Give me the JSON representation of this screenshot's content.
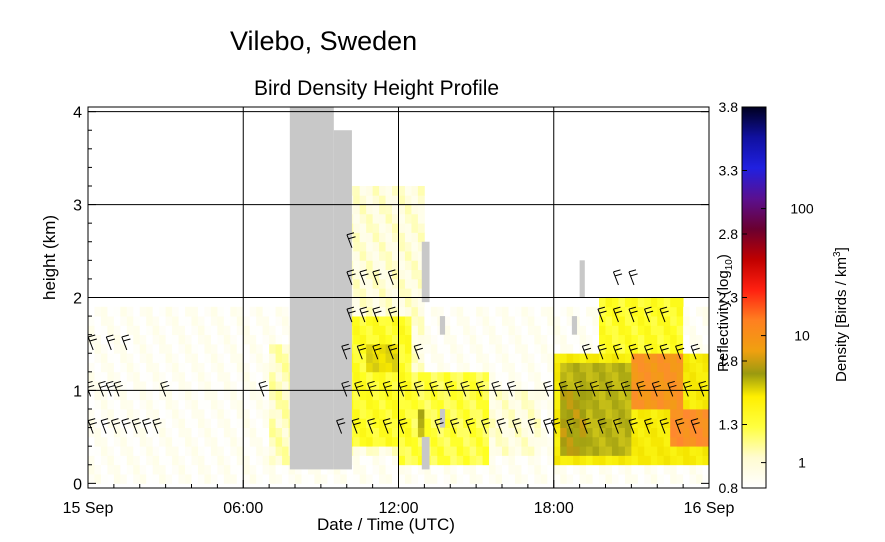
{
  "site_title": "Vilebo, Sweden",
  "chart_data": {
    "type": "heatmap",
    "title": "Bird Density Height Profile",
    "xlabel": "Date / Time (UTC)",
    "ylabel": "height (km)",
    "x_ticks": [
      {
        "hour": 0,
        "label": "15 Sep"
      },
      {
        "hour": 6,
        "label": "06:00"
      },
      {
        "hour": 12,
        "label": "12:00"
      },
      {
        "hour": 18,
        "label": "18:00"
      },
      {
        "hour": 24,
        "label": "16 Sep"
      }
    ],
    "y_ticks": [
      0,
      1,
      2,
      3,
      4
    ],
    "xlim_hours": [
      0,
      24
    ],
    "ylim_km": [
      -0.05,
      4.05
    ],
    "grid": true,
    "colorbar": {
      "left_label": "Reflectivity (log10)",
      "right_label": "Density [Birds / km3]",
      "reflectivity_ticks": [
        "0.8",
        "1.3",
        "1.8",
        "2.3",
        "2.8",
        "3.3",
        "3.8"
      ],
      "reflectivity_range": [
        0.8,
        3.8
      ],
      "density_ticks": [
        {
          "value": 1,
          "label": "1"
        },
        {
          "value": 10,
          "label": "10"
        },
        {
          "value": 100,
          "label": "100"
        }
      ]
    },
    "no_data_color": "#c8c8c8",
    "no_data_regions": [
      {
        "x0": 7.8,
        "x1": 9.5,
        "y0": 0.15,
        "y1": 4.05
      },
      {
        "x0": 9.5,
        "x1": 10.2,
        "y0": 0.15,
        "y1": 3.8
      },
      {
        "x0": 12.9,
        "x1": 13.2,
        "y0": 0.15,
        "y1": 0.5
      },
      {
        "x0": 12.9,
        "x1": 13.2,
        "y0": 1.95,
        "y1": 2.6
      },
      {
        "x0": 13.6,
        "x1": 13.8,
        "y0": 0.6,
        "y1": 0.8
      },
      {
        "x0": 13.6,
        "x1": 13.8,
        "y0": 1.6,
        "y1": 1.8
      },
      {
        "x0": 19.0,
        "x1": 19.2,
        "y0": 2.0,
        "y1": 2.4
      },
      {
        "x0": 18.7,
        "x1": 18.9,
        "y0": 1.6,
        "y1": 1.8
      }
    ],
    "reflectivity_blobs": [
      {
        "t0": 0.0,
        "t1": 24.0,
        "h0": 0.0,
        "h1": 1.9,
        "value": 0.85
      },
      {
        "t0": 7.4,
        "t1": 7.6,
        "h0": 3.6,
        "h1": 3.8,
        "value": 1.2
      },
      {
        "t0": 7.0,
        "t1": 8.0,
        "h0": 0.2,
        "h1": 1.5,
        "value": 1.0
      },
      {
        "t0": 9.8,
        "t1": 13.0,
        "h0": 0.3,
        "h1": 3.2,
        "value": 0.95
      },
      {
        "t0": 9.9,
        "t1": 12.5,
        "h0": 0.4,
        "h1": 1.8,
        "value": 1.2
      },
      {
        "t0": 10.8,
        "t1": 12.0,
        "h0": 1.2,
        "h1": 1.5,
        "value": 1.45
      },
      {
        "t0": 12.0,
        "t1": 15.5,
        "h0": 0.2,
        "h1": 1.2,
        "value": 1.15
      },
      {
        "t0": 12.8,
        "t1": 13.0,
        "h0": 0.5,
        "h1": 0.8,
        "value": 1.6
      },
      {
        "t0": 15.0,
        "t1": 17.5,
        "h0": 0.3,
        "h1": 1.0,
        "value": 0.95
      },
      {
        "t0": 18.0,
        "t1": 24.0,
        "h0": 0.2,
        "h1": 1.4,
        "value": 1.35
      },
      {
        "t0": 18.3,
        "t1": 21.0,
        "h0": 0.3,
        "h1": 1.3,
        "value": 1.6
      },
      {
        "t0": 19.8,
        "t1": 23.0,
        "h0": 1.3,
        "h1": 2.0,
        "value": 1.2
      },
      {
        "t0": 21.0,
        "t1": 23.0,
        "h0": 0.8,
        "h1": 1.4,
        "value": 1.9
      },
      {
        "t0": 22.5,
        "t1": 24.0,
        "h0": 0.4,
        "h1": 0.8,
        "value": 1.95
      },
      {
        "t0": 18.2,
        "t1": 19.2,
        "h0": 0.3,
        "h1": 1.0,
        "value": 1.7
      }
    ],
    "wind_barb_rows": [
      {
        "h": 1.5,
        "times": [
          0.2,
          0.9,
          1.5
        ]
      },
      {
        "h": 1.0,
        "times": [
          0.1,
          0.6,
          0.9,
          1.2,
          3.0,
          6.8
        ]
      },
      {
        "h": 0.6,
        "times": [
          0.2,
          0.7,
          1.1,
          1.5,
          1.9,
          2.3,
          2.7
        ]
      },
      {
        "h": 2.6,
        "times": [
          10.2
        ]
      },
      {
        "h": 2.2,
        "times": [
          10.2,
          10.7,
          11.2,
          11.8
        ]
      },
      {
        "h": 1.8,
        "times": [
          10.2,
          10.7,
          11.2,
          11.8
        ]
      },
      {
        "h": 1.4,
        "times": [
          10.0,
          10.6,
          11.2,
          11.8,
          12.8
        ]
      },
      {
        "h": 1.0,
        "times": [
          10.0,
          10.5,
          11.0,
          11.6,
          12.2,
          12.8,
          13.4,
          14.0,
          14.6,
          15.2,
          15.8,
          16.4
        ]
      },
      {
        "h": 0.6,
        "times": [
          9.8,
          10.4,
          11.0,
          11.6,
          12.2,
          13.6,
          14.2,
          14.8,
          15.4,
          16.0,
          16.6,
          17.2,
          17.8
        ]
      },
      {
        "h": 2.2,
        "times": [
          20.5,
          21.1
        ]
      },
      {
        "h": 1.8,
        "times": [
          19.9,
          20.5,
          21.1,
          21.7,
          22.3
        ]
      },
      {
        "h": 1.4,
        "times": [
          19.3,
          19.9,
          20.5,
          21.1,
          21.7,
          22.3,
          22.9,
          23.5
        ]
      },
      {
        "h": 1.0,
        "times": [
          17.8,
          18.4,
          19.0,
          19.6,
          20.2,
          20.8,
          21.4,
          22.0,
          22.6,
          23.2,
          23.8
        ]
      },
      {
        "h": 0.6,
        "times": [
          18.1,
          18.7,
          19.3,
          19.9,
          20.5,
          21.1,
          21.7,
          22.3,
          22.9,
          23.5
        ]
      }
    ]
  }
}
